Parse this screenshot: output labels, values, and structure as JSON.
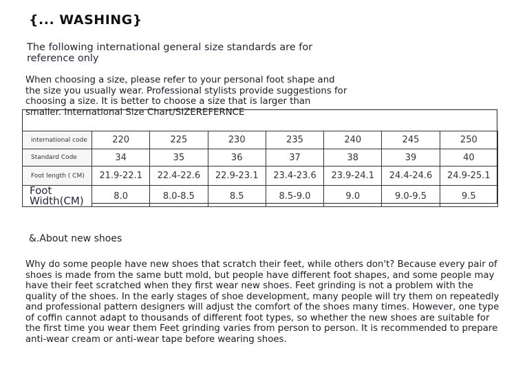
{
  "title": "{... WASHING}",
  "subtitle": "The following international general size standards are for reference only",
  "intro": "When choosing a size, please refer to your personal foot shape and the size you usually wear. Professional stylists provide suggestions for choosing a size. It is better to choose a size that is larger than smaller. International Size Chart/SIZEREFERNCE",
  "table": {
    "rows": [
      {
        "label": "international code",
        "values": [
          "220",
          "225",
          "230",
          "235",
          "240",
          "245",
          "250"
        ]
      },
      {
        "label": "Standard Code",
        "values": [
          "34",
          "35",
          "36",
          "37",
          "38",
          "39",
          "40"
        ]
      },
      {
        "label": "Foot length ( CM)",
        "values": [
          "21.9-22.1",
          "22.4-22.6",
          "22.9-23.1",
          "23.4-23.6",
          "23.9-24.1",
          "24.4-24.6",
          "24.9-25.1"
        ]
      },
      {
        "label": "Foot Width(CM)",
        "values": [
          "8.0",
          "8.0-8.5",
          "8.5",
          "8.5-9.0",
          "9.0",
          "9.0-9.5",
          "9.5"
        ]
      }
    ]
  },
  "section_heading": "&.About new shoes",
  "body": "Why do some people have new shoes that scratch their feet, while others don't? Because every pair of shoes is made from the same butt mold, but people have different foot shapes, and some people may have their feet scratched when they first wear new shoes. Feet grinding is not a problem with the quality of the shoes. In the early stages of shoe development, many people will try them on repeatedly and professional pattern designers will adjust the comfort of the shoes many times. However, one type of coffin cannot adapt to thousands of different foot types, so whether the new shoes are suitable for the first time you wear them Feet grinding varies from person to person. It is recommended to prepare anti-wear cream or anti-wear tape before wearing shoes."
}
